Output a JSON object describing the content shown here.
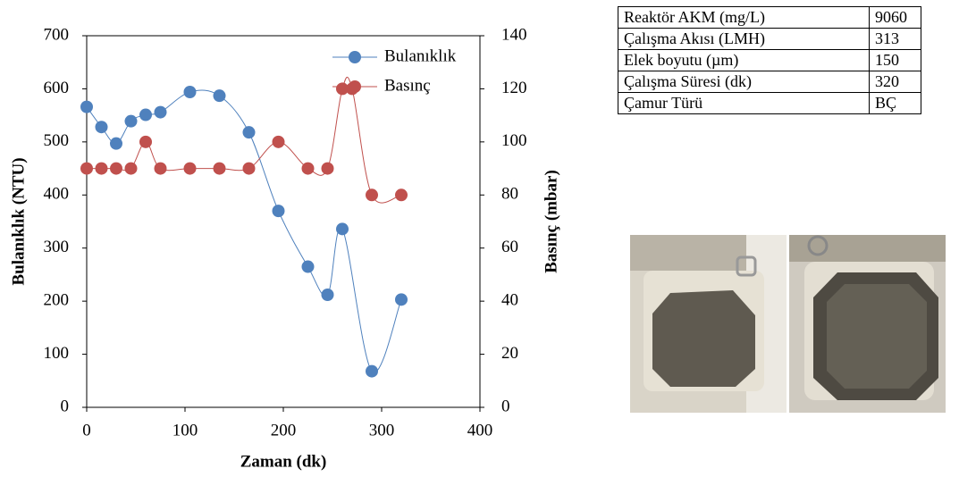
{
  "chart_data": {
    "type": "line",
    "x_label": "Zaman (dk)",
    "y_label": "Bulanıklık (NTU)",
    "y2_label": "Basınç (mbar)",
    "xlim": [
      0,
      400
    ],
    "xticks": [
      0,
      100,
      200,
      300,
      400
    ],
    "ylim": [
      0,
      700
    ],
    "yticks": [
      0,
      100,
      200,
      300,
      400,
      500,
      600,
      700
    ],
    "y2lim": [
      0,
      140
    ],
    "y2ticks": [
      0,
      20,
      40,
      60,
      80,
      100,
      120,
      140
    ],
    "grid": false,
    "legend": "upper right",
    "series": [
      {
        "name": "Bulanıklık",
        "color": "#4f81bd",
        "x": [
          0,
          15,
          30,
          45,
          60,
          75,
          105,
          135,
          165,
          195,
          225,
          245,
          260,
          290,
          320
        ],
        "values": [
          566,
          528,
          497,
          539,
          551,
          556,
          594,
          587,
          518,
          370,
          265,
          212,
          336,
          68,
          203
        ]
      },
      {
        "name": "Basınç",
        "color": "#c0504d",
        "axis": "y2",
        "x": [
          0,
          15,
          30,
          45,
          60,
          75,
          105,
          135,
          165,
          195,
          225,
          245,
          260,
          270,
          290,
          320
        ],
        "values": [
          90,
          90,
          90,
          90,
          100,
          90,
          90,
          90,
          90,
          100,
          90,
          90,
          120,
          120,
          80,
          80
        ]
      }
    ]
  },
  "table": {
    "rows": [
      [
        "Reaktör AKM (mg/L)",
        "9060"
      ],
      [
        "Çalışma Akısı (LMH)",
        "313"
      ],
      [
        "Elek boyutu (µm)",
        "150"
      ],
      [
        "Çalışma Süresi (dk)",
        "320"
      ],
      [
        "Çamur Türü",
        "BÇ"
      ]
    ]
  }
}
